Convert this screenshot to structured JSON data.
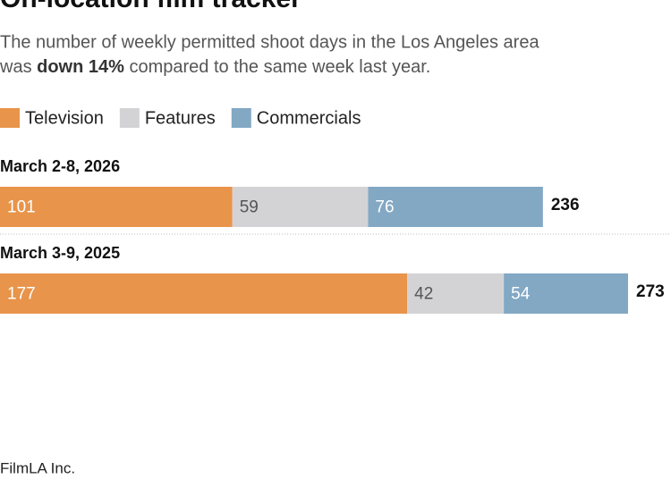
{
  "chart_data": {
    "type": "stacked-bar",
    "title": "On-location film tracker",
    "subtitle": [
      "The number of weekly permitted shoot days in the Los Angeles area",
      "was ",
      "down 14%",
      " compared to the same week last year."
    ],
    "categories": [
      "March 2-8, 2026",
      "March 3-9, 2025"
    ],
    "series": [
      {
        "name": "Television",
        "color": "#e8944a",
        "label_color": "#ffffff",
        "values": [
          101,
          177
        ]
      },
      {
        "name": "Features",
        "color": "#d3d3d6",
        "label_color": "#555555",
        "values": [
          59,
          42
        ]
      },
      {
        "name": "Commercials",
        "color": "#82a8c4",
        "label_color": "#ffffff",
        "values": [
          76,
          54
        ]
      }
    ],
    "totals": [
      236,
      273
    ],
    "source": "FilmLA Inc."
  }
}
